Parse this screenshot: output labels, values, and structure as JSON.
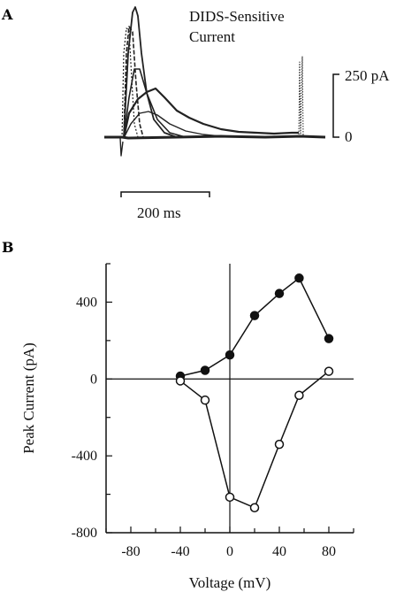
{
  "panel_a": {
    "letter": "A",
    "title_line1": "DIDS-Sensitive",
    "title_line2": "Current",
    "scale_y_label": "250 pA",
    "zero_label": "0",
    "scale_x_label": "200 ms"
  },
  "panel_b": {
    "letter": "B"
  },
  "chart_data": {
    "type": "scatter",
    "title": "",
    "xlabel": "Voltage (mV)",
    "ylabel": "Peak Current (pA)",
    "xlim": [
      -100,
      100
    ],
    "ylim": [
      -800,
      600
    ],
    "xticks": [
      -80,
      -40,
      0,
      40,
      80
    ],
    "yticks": [
      -800,
      -400,
      0,
      400
    ],
    "grid": false,
    "series": [
      {
        "marker": "filled-circle",
        "x": [
          -40,
          -20,
          0,
          20,
          40,
          56,
          80
        ],
        "y": [
          15,
          45,
          125,
          330,
          445,
          525,
          210
        ]
      },
      {
        "marker": "open-circle",
        "x": [
          -40,
          -20,
          0,
          20,
          40,
          56,
          80
        ],
        "y": [
          -10,
          -110,
          -615,
          -670,
          -340,
          -85,
          40
        ]
      }
    ]
  }
}
